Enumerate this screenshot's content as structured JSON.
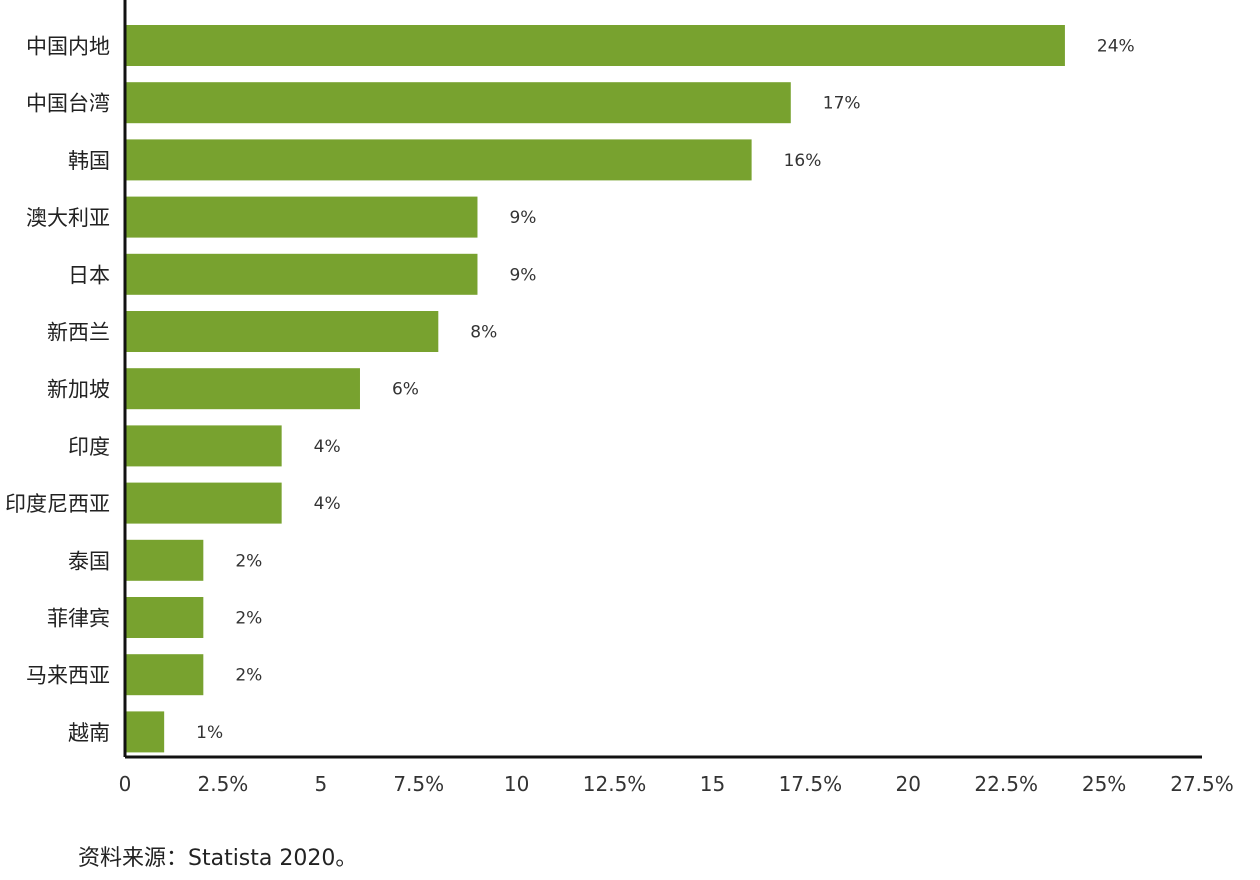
{
  "chart_data": {
    "type": "bar",
    "orientation": "horizontal",
    "title": "",
    "xlabel": "",
    "ylabel": "",
    "categories": [
      "中国内地",
      "中国台湾",
      "韩国",
      "澳大利亚",
      "日本",
      "新西兰",
      "新加坡",
      "印度",
      "印度尼西亚",
      "泰国",
      "菲律宾",
      "马来西亚",
      "越南"
    ],
    "values": [
      24,
      17,
      16,
      9,
      9,
      8,
      6,
      4,
      4,
      2,
      2,
      2,
      1
    ],
    "data_labels": [
      "24%",
      "17%",
      "16%",
      "9%",
      "9%",
      "8%",
      "6%",
      "4%",
      "4%",
      "2%",
      "2%",
      "2%",
      "1%"
    ],
    "xlim": [
      0,
      27.5
    ],
    "x_ticks": [
      0,
      2.5,
      5,
      7.5,
      10,
      12.5,
      15,
      17.5,
      20,
      22.5,
      25,
      27.5
    ],
    "x_tick_labels": [
      "0",
      "2.5%",
      "5",
      "7.5%",
      "10",
      "12.5%",
      "15",
      "17.5%",
      "20",
      "22.5%",
      "25%",
      "27.5%"
    ],
    "grid": false,
    "legend": "none",
    "bar_color": "#78a22f"
  },
  "footer": {
    "source": "资料来源：Statista 2020。"
  }
}
